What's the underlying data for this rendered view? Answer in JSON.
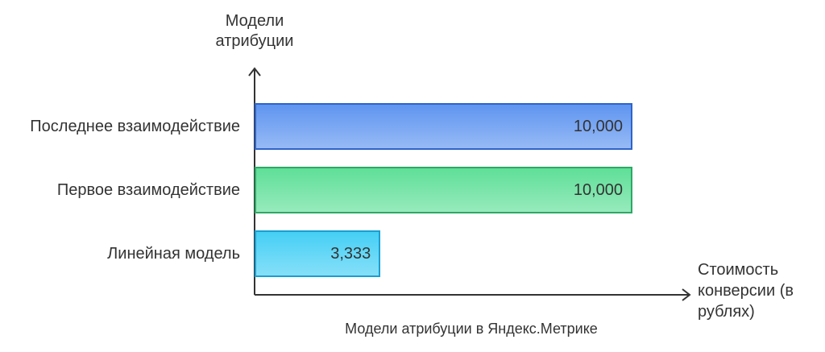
{
  "chart_data": {
    "type": "bar",
    "orientation": "horizontal",
    "title": "Модели атрибуции в Яндекс.Метрике",
    "y_label": "Модели атрибуции",
    "x_label": "Стоимость конверсии (в рублях)",
    "categories": [
      "Последнее взаимодействие",
      "Первое взаимодействие",
      "Линейная модель"
    ],
    "values": [
      10000,
      10000,
      3333
    ],
    "value_labels": [
      "10,000",
      "10,000",
      "3,333"
    ],
    "colors": [
      "#5f95f0",
      "#5fdf98",
      "#45cff5"
    ],
    "border_colors": [
      "#2f64c8",
      "#2ea866",
      "#1a9fd0"
    ]
  }
}
